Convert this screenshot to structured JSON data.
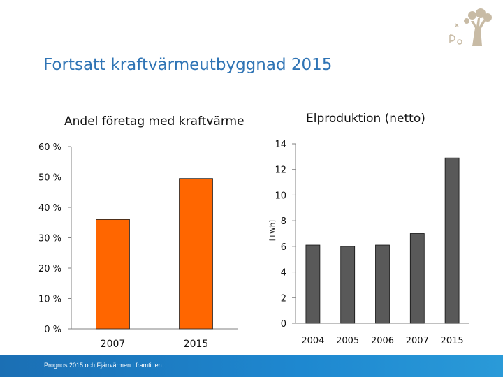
{
  "slide": {
    "title": "Fortsatt kraftvärmeutbyggnad 2015",
    "footer": "Prognos 2015 och Fjärrvärmen i framtiden"
  },
  "colors": {
    "title": "#2f74b5",
    "left_bars": "#ff6600",
    "right_bars": "#595959",
    "footer": "#1e88d0"
  },
  "chart_data": [
    {
      "type": "bar",
      "title": "Andel företag med kraftvärme",
      "categories": [
        "2007",
        "2015"
      ],
      "values": [
        36,
        49.5
      ],
      "ylim": [
        0,
        60
      ],
      "yticks": [
        "0 %",
        "10 %",
        "20 %",
        "30 %",
        "40 %",
        "50 %",
        "60 %"
      ],
      "grid": false
    },
    {
      "type": "bar",
      "title": "Elproduktion (netto)",
      "ylabel": "[TWh]",
      "categories": [
        "2004",
        "2005",
        "2006",
        "2007",
        "2015"
      ],
      "values": [
        6.1,
        6.0,
        6.1,
        7.0,
        12.9
      ],
      "ylim": [
        0,
        14
      ],
      "yticks": [
        "0",
        "2",
        "4",
        "6",
        "8",
        "10",
        "12",
        "14"
      ],
      "grid": false
    }
  ]
}
